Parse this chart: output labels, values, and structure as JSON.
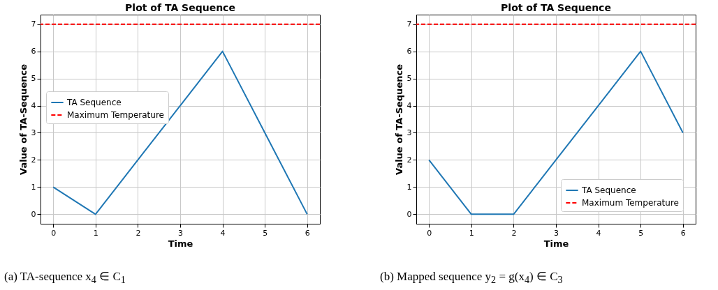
{
  "chart_data": [
    {
      "type": "line",
      "title": "Plot of TA Sequence",
      "xlabel": "Time",
      "ylabel": "Value of TA-Sequence",
      "x": [
        0,
        1,
        2,
        3,
        4,
        5,
        6
      ],
      "series": [
        {
          "name": "TA Sequence",
          "color": "#1f77b4",
          "values": [
            1,
            0,
            2,
            4,
            6,
            3,
            0
          ]
        }
      ],
      "ref_lines": [
        {
          "axis": "y",
          "value": 7,
          "label": "Maximum Temperature",
          "color": "#ff0000",
          "line_style": "dashed"
        }
      ],
      "xlim": [
        -0.3,
        6.3
      ],
      "ylim": [
        -0.35,
        7.35
      ],
      "xticks": [
        0,
        1,
        2,
        3,
        4,
        5,
        6
      ],
      "yticks": [
        0,
        1,
        2,
        3,
        4,
        5,
        6,
        7
      ],
      "grid": true,
      "legend": "left",
      "annotations": [
        "(a) TA-sequence x$_{4}$ ∈ C$_{1}$"
      ]
    },
    {
      "type": "line",
      "title": "Plot of TA Sequence",
      "xlabel": "Time",
      "ylabel": "Value of TA-Sequence",
      "x": [
        0,
        1,
        2,
        3,
        4,
        5,
        6
      ],
      "series": [
        {
          "name": "TA Sequence",
          "color": "#1f77b4",
          "values": [
            2,
            0,
            0,
            2,
            4,
            6,
            3
          ]
        }
      ],
      "ref_lines": [
        {
          "axis": "y",
          "value": 7,
          "label": "Maximum Temperature",
          "color": "#ff0000",
          "line_style": "dashed"
        }
      ],
      "xlim": [
        -0.3,
        6.3
      ],
      "ylim": [
        -0.35,
        7.35
      ],
      "xticks": [
        0,
        1,
        2,
        3,
        4,
        5,
        6
      ],
      "yticks": [
        0,
        1,
        2,
        3,
        4,
        5,
        6,
        7
      ],
      "grid": true,
      "legend": "bottom right",
      "annotations": [
        "(b) Mapped sequence y$_{2}$ = g(x$_{4}$) ∈ C$_{3}$"
      ]
    }
  ]
}
